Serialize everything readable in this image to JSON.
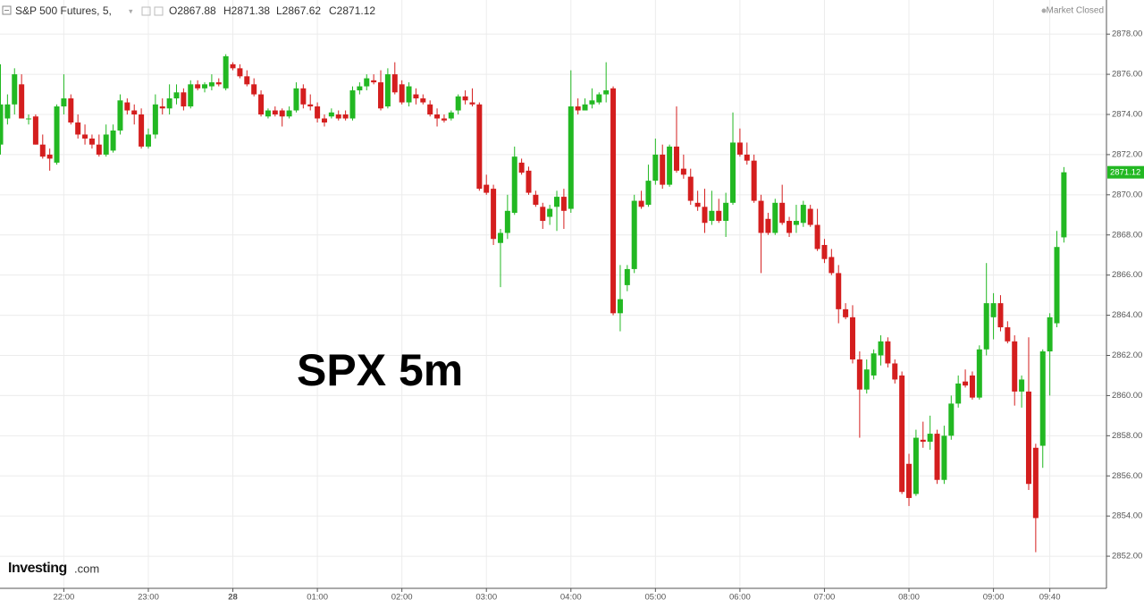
{
  "header": {
    "title": "S&P 500 Futures, 5,",
    "open": "O2867.88",
    "high": "H2871.38",
    "low": "L2867.62",
    "close": "C2871.12",
    "status": "Market Closed"
  },
  "logo": {
    "brand": "Investing",
    "suffix": ".com"
  },
  "chart_data": {
    "type": "candlestick",
    "annotation": "SPX 5m",
    "last_price_label": "2871.12",
    "up_color": "#22b822",
    "down_color": "#d41e1e",
    "grid": true,
    "ylim": [
      2850.4,
      2879.7
    ],
    "yticks": [
      {
        "value": 2852,
        "label": "2852.00"
      },
      {
        "value": 2854,
        "label": "2854.00"
      },
      {
        "value": 2856,
        "label": "2856.00"
      },
      {
        "value": 2858,
        "label": "2858.00"
      },
      {
        "value": 2860,
        "label": "2860.00"
      },
      {
        "value": 2862,
        "label": "2862.00"
      },
      {
        "value": 2864,
        "label": "2864.00"
      },
      {
        "value": 2866,
        "label": "2866.00"
      },
      {
        "value": 2868,
        "label": "2868.00"
      },
      {
        "value": 2870,
        "label": "2870.00"
      },
      {
        "value": 2872,
        "label": "2872.00"
      },
      {
        "value": 2874,
        "label": "2874.00"
      },
      {
        "value": 2876,
        "label": "2876.00"
      },
      {
        "value": 2878,
        "label": "2878.00"
      }
    ],
    "xticks": [
      {
        "value": "22:00",
        "label": "22:00"
      },
      {
        "value": "23:00",
        "label": "23:00"
      },
      {
        "value": "00:00",
        "label": "28"
      },
      {
        "value": "01:00",
        "label": "01:00"
      },
      {
        "value": "02:00",
        "label": "02:00"
      },
      {
        "value": "03:00",
        "label": "03:00"
      },
      {
        "value": "04:00",
        "label": "04:00"
      },
      {
        "value": "05:00",
        "label": "05:00"
      },
      {
        "value": "06:00",
        "label": "06:00"
      },
      {
        "value": "07:00",
        "label": "07:00"
      },
      {
        "value": "08:00",
        "label": "08:00"
      },
      {
        "value": "09:00",
        "label": "09:00"
      },
      {
        "value": "09:40",
        "label": "09:40"
      }
    ],
    "categories": [
      "21:15",
      "21:20",
      "21:25",
      "21:30",
      "21:35",
      "21:40",
      "21:45",
      "21:50",
      "21:55",
      "22:00",
      "22:05",
      "22:10",
      "22:15",
      "22:20",
      "22:25",
      "22:30",
      "22:35",
      "22:40",
      "22:45",
      "22:50",
      "22:55",
      "23:00",
      "23:05",
      "23:10",
      "23:15",
      "23:20",
      "23:25",
      "23:30",
      "23:35",
      "23:40",
      "23:45",
      "23:50",
      "23:55",
      "00:00",
      "00:05",
      "00:10",
      "00:15",
      "00:20",
      "00:25",
      "00:30",
      "00:35",
      "00:40",
      "00:45",
      "00:50",
      "00:55",
      "01:00",
      "01:05",
      "01:10",
      "01:15",
      "01:20",
      "01:25",
      "01:30",
      "01:35",
      "01:40",
      "01:45",
      "01:50",
      "01:55",
      "02:00",
      "02:05",
      "02:10",
      "02:15",
      "02:20",
      "02:25",
      "02:30",
      "02:35",
      "02:40",
      "02:45",
      "02:50",
      "02:55",
      "03:00",
      "03:05",
      "03:10",
      "03:15",
      "03:20",
      "03:25",
      "03:30",
      "03:35",
      "03:40",
      "03:45",
      "03:50",
      "03:55",
      "04:00",
      "04:05",
      "04:10",
      "04:15",
      "04:20",
      "04:25",
      "04:30",
      "04:35",
      "04:40",
      "04:45",
      "04:50",
      "04:55",
      "05:00",
      "05:05",
      "05:10",
      "05:15",
      "05:20",
      "05:25",
      "05:30",
      "05:35",
      "05:40",
      "05:45",
      "05:50",
      "05:55",
      "06:00",
      "06:05",
      "06:10",
      "06:15",
      "06:20",
      "06:25",
      "06:30",
      "06:35",
      "06:40",
      "06:45",
      "06:50",
      "06:55",
      "07:00",
      "07:05",
      "07:10",
      "07:15",
      "07:20",
      "07:25",
      "07:30",
      "07:35",
      "07:40",
      "07:45",
      "07:50",
      "07:55",
      "08:00",
      "08:05",
      "08:10",
      "08:15",
      "08:20",
      "08:25",
      "08:30",
      "08:35",
      "08:40",
      "08:45",
      "08:50",
      "08:55",
      "09:00",
      "09:05",
      "09:10",
      "09:15",
      "09:20",
      "09:25",
      "09:30",
      "09:35",
      "09:40",
      "09:45",
      "09:50"
    ],
    "ohlc": [
      [
        2872.5,
        2876.5,
        2872,
        2874.5
      ],
      [
        2873.8,
        2875,
        2873.5,
        2874.5
      ],
      [
        2874.5,
        2876.3,
        2874,
        2876
      ],
      [
        2875.5,
        2876,
        2873.8,
        2873.8
      ],
      [
        2873.8,
        2874,
        2873.5,
        2873.8
      ],
      [
        2873.9,
        2874,
        2872.5,
        2872.5
      ],
      [
        2872.5,
        2873,
        2871.8,
        2871.9
      ],
      [
        2872,
        2872.3,
        2871.2,
        2871.8
      ],
      [
        2871.6,
        2874.5,
        2871.5,
        2874.4
      ],
      [
        2874.4,
        2876,
        2874,
        2874.8
      ],
      [
        2874.8,
        2875,
        2873.5,
        2873.6
      ],
      [
        2873.6,
        2874,
        2872.8,
        2873
      ],
      [
        2873,
        2873.5,
        2872.5,
        2872.8
      ],
      [
        2872.8,
        2873,
        2872.3,
        2872.5
      ],
      [
        2872.5,
        2873,
        2871.9,
        2872
      ],
      [
        2872,
        2873.5,
        2871.9,
        2873
      ],
      [
        2872.2,
        2873.5,
        2872.1,
        2873.2
      ],
      [
        2873.2,
        2875,
        2873,
        2874.7
      ],
      [
        2874.6,
        2874.8,
        2874,
        2874.2
      ],
      [
        2874.2,
        2874.5,
        2873.5,
        2874
      ],
      [
        2874,
        2874.3,
        2872.3,
        2872.4
      ],
      [
        2872.4,
        2873.3,
        2872.3,
        2873
      ],
      [
        2873,
        2875,
        2872.8,
        2874.5
      ],
      [
        2874.4,
        2874.8,
        2874,
        2874.3
      ],
      [
        2874.3,
        2875.5,
        2874,
        2874.8
      ],
      [
        2874.8,
        2875.5,
        2874.5,
        2875.1
      ],
      [
        2875.1,
        2875.3,
        2874.2,
        2874.4
      ],
      [
        2874.4,
        2875.7,
        2874.3,
        2875.5
      ],
      [
        2875.5,
        2875.7,
        2875.2,
        2875.3
      ],
      [
        2875.3,
        2875.6,
        2875.1,
        2875.5
      ],
      [
        2875.4,
        2876,
        2875.2,
        2875.6
      ],
      [
        2875.6,
        2875.8,
        2875.4,
        2875.5
      ],
      [
        2875.3,
        2877,
        2875.2,
        2876.9
      ],
      [
        2876.5,
        2876.6,
        2876.2,
        2876.3
      ],
      [
        2876.3,
        2876.5,
        2875.8,
        2875.9
      ],
      [
        2875.9,
        2876.2,
        2875.4,
        2875.5
      ],
      [
        2875.5,
        2875.8,
        2874.9,
        2875
      ],
      [
        2875,
        2875.2,
        2873.9,
        2874
      ],
      [
        2873.9,
        2874.3,
        2873.8,
        2874.2
      ],
      [
        2874.2,
        2874.4,
        2873.9,
        2874
      ],
      [
        2874.2,
        2874.3,
        2873.4,
        2873.9
      ],
      [
        2873.9,
        2874.4,
        2873.8,
        2874.2
      ],
      [
        2874.2,
        2875.6,
        2874.1,
        2875.3
      ],
      [
        2875.3,
        2875.5,
        2874.3,
        2874.5
      ],
      [
        2874.5,
        2875,
        2874.2,
        2874.4
      ],
      [
        2874.4,
        2874.6,
        2873.6,
        2873.8
      ],
      [
        2873.8,
        2874,
        2873.4,
        2873.6
      ],
      [
        2873.9,
        2874.3,
        2873.8,
        2874.1
      ],
      [
        2874,
        2874.2,
        2873.7,
        2873.8
      ],
      [
        2874,
        2874.2,
        2873.7,
        2873.8
      ],
      [
        2873.8,
        2875.4,
        2873.7,
        2875.2
      ],
      [
        2875.2,
        2875.6,
        2875,
        2875.4
      ],
      [
        2875.4,
        2876,
        2875.2,
        2875.8
      ],
      [
        2875.7,
        2876,
        2875.5,
        2875.6
      ],
      [
        2875.6,
        2876.2,
        2874.2,
        2874.3
      ],
      [
        2874.4,
        2876.3,
        2874.3,
        2876
      ],
      [
        2876,
        2876.6,
        2875,
        2875.1
      ],
      [
        2875.5,
        2875.7,
        2874.5,
        2874.6
      ],
      [
        2874.6,
        2875.6,
        2874.4,
        2875.4
      ],
      [
        2875,
        2875.3,
        2874.5,
        2874.8
      ],
      [
        2874.8,
        2875,
        2874.5,
        2874.6
      ],
      [
        2874.5,
        2874.7,
        2873.9,
        2874
      ],
      [
        2874,
        2874.3,
        2873.4,
        2873.8
      ],
      [
        2873.8,
        2874,
        2873.6,
        2873.7
      ],
      [
        2873.8,
        2874.2,
        2873.7,
        2874.1
      ],
      [
        2874.2,
        2875,
        2874,
        2874.9
      ],
      [
        2874.9,
        2875.2,
        2874.5,
        2874.7
      ],
      [
        2874.6,
        2875.3,
        2874.4,
        2874.5
      ],
      [
        2874.5,
        2874.6,
        2870.2,
        2870.3
      ],
      [
        2870.5,
        2871,
        2870,
        2870.1
      ],
      [
        2870.3,
        2870.5,
        2867.5,
        2867.8
      ],
      [
        2867.6,
        2868.3,
        2865.4,
        2868.1
      ],
      [
        2868.1,
        2870,
        2867.8,
        2869.2
      ],
      [
        2869.1,
        2872.4,
        2869,
        2871.9
      ],
      [
        2871.6,
        2871.8,
        2871,
        2871.1
      ],
      [
        2871.2,
        2871.4,
        2870,
        2870.1
      ],
      [
        2870,
        2870.2,
        2869.4,
        2869.5
      ],
      [
        2869.4,
        2869.6,
        2868.3,
        2868.7
      ],
      [
        2868.9,
        2869.5,
        2868.5,
        2869.3
      ],
      [
        2869.4,
        2870.2,
        2868.2,
        2869.9
      ],
      [
        2869.9,
        2870.3,
        2868.3,
        2869.2
      ],
      [
        2869.3,
        2876.2,
        2869.1,
        2874.4
      ],
      [
        2874.4,
        2874.8,
        2874,
        2874.2
      ],
      [
        2874.2,
        2874.8,
        2874.2,
        2874.5
      ],
      [
        2874.5,
        2875.3,
        2874.3,
        2874.7
      ],
      [
        2874.6,
        2875.1,
        2874.5,
        2875
      ],
      [
        2875,
        2876.6,
        2874.6,
        2875.2
      ],
      [
        2875.3,
        2875.4,
        2864,
        2864.1
      ],
      [
        2864.1,
        2866.5,
        2863.2,
        2864.8
      ],
      [
        2865.5,
        2866.5,
        2865.2,
        2866.3
      ],
      [
        2866.3,
        2870,
        2866.1,
        2869.7
      ],
      [
        2869.7,
        2870.2,
        2869.3,
        2869.4
      ],
      [
        2869.5,
        2871.5,
        2869.4,
        2870.7
      ],
      [
        2870.7,
        2872.8,
        2870.5,
        2872
      ],
      [
        2872,
        2872.5,
        2870.3,
        2870.5
      ],
      [
        2870.5,
        2872.5,
        2870.4,
        2872.4
      ],
      [
        2872.4,
        2874.4,
        2871.1,
        2871.2
      ],
      [
        2871.3,
        2872,
        2870.8,
        2871
      ],
      [
        2870.9,
        2871.3,
        2869.5,
        2869.7
      ],
      [
        2869.6,
        2870.2,
        2869.2,
        2869.4
      ],
      [
        2869.4,
        2870.3,
        2868.1,
        2868.6
      ],
      [
        2868.7,
        2870.2,
        2868.5,
        2869.2
      ],
      [
        2869.2,
        2869.8,
        2868.6,
        2868.7
      ],
      [
        2868.7,
        2870.1,
        2867.9,
        2869.6
      ],
      [
        2869.6,
        2874.1,
        2869.5,
        2872.6
      ],
      [
        2872.6,
        2873.3,
        2871.9,
        2872
      ],
      [
        2872,
        2872.6,
        2871.5,
        2871.7
      ],
      [
        2871.7,
        2872,
        2869.6,
        2869.7
      ],
      [
        2869.7,
        2870,
        2866.1,
        2868.1
      ],
      [
        2868.8,
        2869.1,
        2868,
        2868.1
      ],
      [
        2868.1,
        2869.8,
        2868,
        2869.6
      ],
      [
        2869.6,
        2870.5,
        2868.5,
        2868.6
      ],
      [
        2868.7,
        2868.9,
        2867.9,
        2868.1
      ],
      [
        2868.5,
        2869.5,
        2868.1,
        2868.7
      ],
      [
        2868.6,
        2869.7,
        2868.4,
        2869.5
      ],
      [
        2869.3,
        2869.5,
        2868.4,
        2868.5
      ],
      [
        2868.5,
        2869.3,
        2867.2,
        2867.3
      ],
      [
        2867.5,
        2867.8,
        2866.6,
        2866.8
      ],
      [
        2866.9,
        2867.3,
        2866,
        2866.1
      ],
      [
        2866.1,
        2866.5,
        2863.6,
        2864.3
      ],
      [
        2864.3,
        2864.6,
        2863.8,
        2863.9
      ],
      [
        2863.9,
        2864.5,
        2861.6,
        2861.8
      ],
      [
        2861.8,
        2862.2,
        2857.9,
        2860.3
      ],
      [
        2860.3,
        2861.8,
        2860.1,
        2861.3
      ],
      [
        2861,
        2862.3,
        2860.8,
        2862.1
      ],
      [
        2862,
        2863,
        2861.5,
        2862.7
      ],
      [
        2862.7,
        2862.9,
        2861.4,
        2861.6
      ],
      [
        2861.6,
        2861.8,
        2860.6,
        2860.8
      ],
      [
        2861,
        2861.2,
        2855.1,
        2855.2
      ],
      [
        2856.6,
        2857.1,
        2854.5,
        2854.9
      ],
      [
        2855.1,
        2858.3,
        2855,
        2857.9
      ],
      [
        2857.8,
        2858.7,
        2857.4,
        2857.7
      ],
      [
        2857.7,
        2859,
        2857.3,
        2858.1
      ],
      [
        2858.1,
        2858.3,
        2855.6,
        2855.8
      ],
      [
        2855.8,
        2858.5,
        2855.6,
        2858
      ],
      [
        2858,
        2860,
        2857.8,
        2859.6
      ],
      [
        2859.6,
        2861,
        2859.4,
        2860.6
      ],
      [
        2860.7,
        2861.3,
        2860.4,
        2860.5
      ],
      [
        2861,
        2861.2,
        2859.8,
        2859.9
      ],
      [
        2859.9,
        2862.5,
        2859.8,
        2862.3
      ],
      [
        2862.3,
        2866.6,
        2862,
        2864.6
      ],
      [
        2863.9,
        2865.1,
        2862.8,
        2864.6
      ],
      [
        2864.6,
        2865,
        2863.2,
        2863.4
      ],
      [
        2863.4,
        2863.7,
        2862.6,
        2862.7
      ],
      [
        2862.7,
        2863,
        2859.5,
        2860.2
      ],
      [
        2860.2,
        2861,
        2859.4,
        2860.8
      ],
      [
        2860.2,
        2862.9,
        2855.3,
        2855.6
      ],
      [
        2857.4,
        2857.6,
        2852.2,
        2853.9
      ],
      [
        2857.5,
        2862.3,
        2856.4,
        2862.2
      ],
      [
        2862.2,
        2864.1,
        2860,
        2863.9
      ],
      [
        2863.6,
        2868.2,
        2863.4,
        2867.4
      ],
      [
        2867.88,
        2871.38,
        2867.62,
        2871.12
      ]
    ]
  }
}
